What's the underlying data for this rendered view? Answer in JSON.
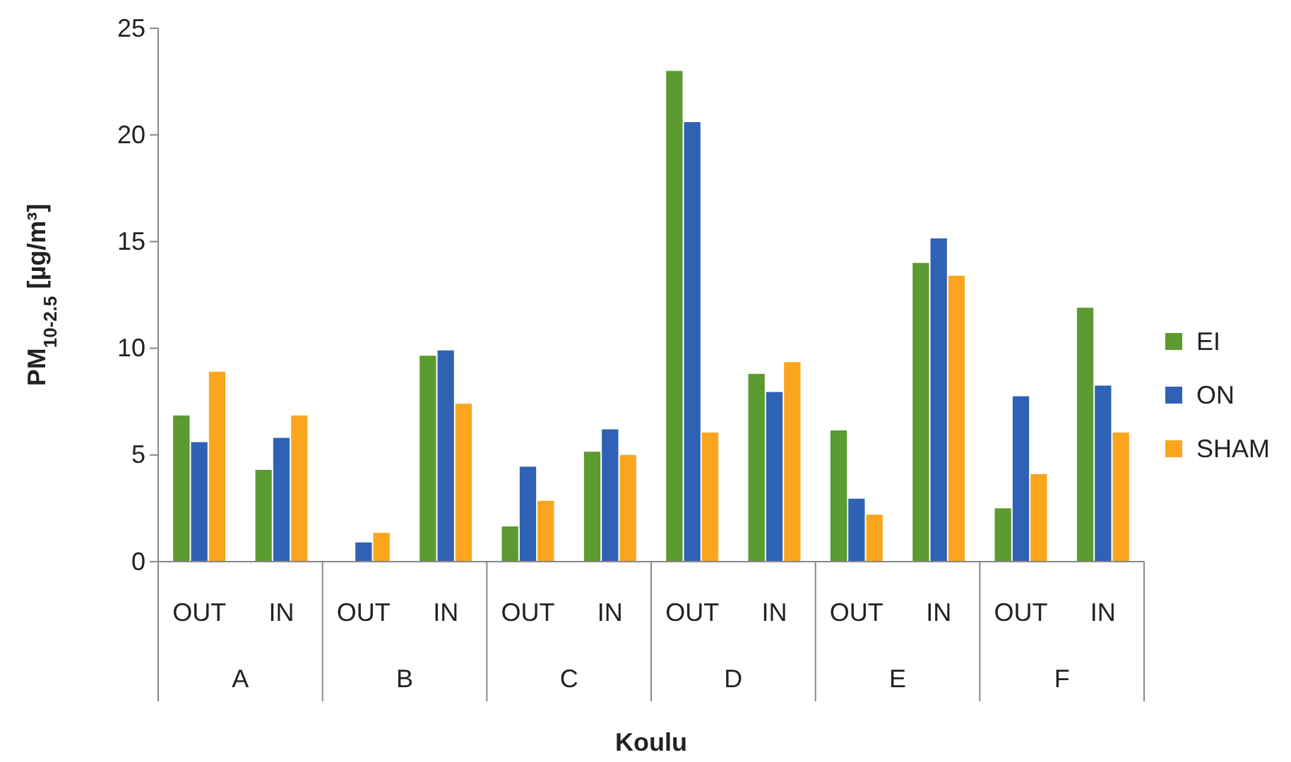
{
  "chart_data": {
    "type": "bar",
    "xlabel": "Koulu",
    "ylabel": "PM$_{10-2.5}$ [µg/m³]",
    "categories": [
      "OUT",
      "IN",
      "OUT",
      "IN",
      "OUT",
      "IN",
      "OUT",
      "IN",
      "OUT",
      "IN",
      "OUT",
      "IN"
    ],
    "annotations": [
      "A",
      "B",
      "C",
      "D",
      "E",
      "F"
    ],
    "series": [
      {
        "name": "EI",
        "color": "#5b9b2f",
        "values": [
          6.85,
          4.3,
          null,
          9.65,
          1.65,
          5.15,
          23.0,
          8.8,
          6.15,
          14.0,
          2.5,
          11.9
        ]
      },
      {
        "name": "ON",
        "color": "#2f62b5",
        "values": [
          5.6,
          5.8,
          0.9,
          9.9,
          4.45,
          6.2,
          20.6,
          7.95,
          2.95,
          15.15,
          7.75,
          8.25
        ]
      },
      {
        "name": "SHAM",
        "color": "#fba51f",
        "values": [
          8.9,
          6.85,
          1.35,
          7.4,
          2.85,
          5.0,
          6.05,
          9.35,
          2.2,
          13.4,
          4.1,
          6.05
        ]
      }
    ],
    "ylim": [
      0,
      25
    ],
    "yticks": [
      0,
      5,
      10,
      15,
      20,
      25
    ],
    "grid": false,
    "legend": "right"
  }
}
